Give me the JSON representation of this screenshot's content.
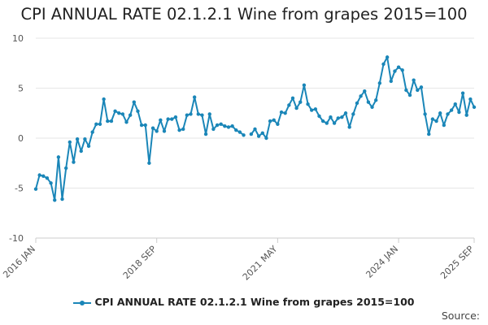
{
  "chart_data": {
    "type": "line",
    "title": "CPI ANNUAL RATE 02.1.2.1 Wine from grapes 2015=100",
    "ylim": [
      -10,
      10
    ],
    "yticks": [
      "10",
      "5",
      "0",
      "-5",
      "-10"
    ],
    "ytick_values": [
      10,
      5,
      0,
      -5,
      -10
    ],
    "xtick_labels": [
      "2016 JAN",
      "2018 SEP",
      "2021 MAY",
      "2024 JAN",
      "2025 SEP"
    ],
    "xtick_index": [
      0,
      32,
      64,
      96,
      116
    ],
    "grid": true,
    "legend": "bottom",
    "series": [
      {
        "name": "CPI ANNUAL RATE 02.1.2.1 Wine from grapes 2015=100",
        "color": "#1a86b8",
        "values": [
          -5.1,
          -3.7,
          -3.8,
          -4.0,
          -4.5,
          -6.2,
          -1.9,
          -6.1,
          -3.0,
          -0.4,
          -2.4,
          -0.1,
          -1.3,
          -0.1,
          -0.8,
          0.6,
          1.4,
          1.4,
          3.9,
          1.7,
          1.7,
          2.7,
          2.5,
          2.4,
          1.6,
          2.3,
          3.6,
          2.7,
          1.3,
          1.3,
          -2.5,
          1.0,
          0.7,
          1.8,
          0.7,
          1.9,
          1.9,
          2.1,
          0.8,
          0.9,
          2.3,
          2.4,
          4.1,
          2.4,
          2.3,
          0.4,
          2.4,
          0.9,
          1.3,
          1.4,
          1.2,
          1.1,
          1.2,
          0.8,
          0.6,
          0.3,
          null,
          0.4,
          0.9,
          0.2,
          0.5,
          0.0,
          1.7,
          1.8,
          1.4,
          2.6,
          2.5,
          3.3,
          4.0,
          3.0,
          3.6,
          5.3,
          3.4,
          2.8,
          2.9,
          2.2,
          1.7,
          1.5,
          2.1,
          1.5,
          2.0,
          2.1,
          2.5,
          1.1,
          2.4,
          3.5,
          4.2,
          4.7,
          3.6,
          3.1,
          3.8,
          5.5,
          7.4,
          8.1,
          5.7,
          6.7,
          7.1,
          6.8,
          4.8,
          4.3,
          5.8,
          4.8,
          5.1,
          2.4,
          0.4,
          1.9,
          1.7,
          2.5,
          1.3,
          2.4,
          2.8,
          3.4,
          2.6,
          4.5,
          2.3,
          3.9,
          3.1
        ]
      }
    ]
  },
  "footer": {
    "source_label": "Source:"
  }
}
